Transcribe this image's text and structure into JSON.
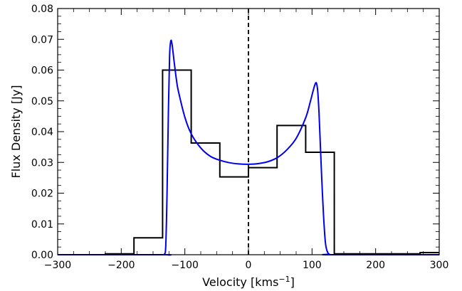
{
  "chart_data": {
    "type": "line",
    "xlabel": "Velocity [kms",
    "xlabel_sup": "−1",
    "xlabel_end": "]",
    "ylabel": "Flux Density [Jy]",
    "xlim": [
      -300,
      300
    ],
    "ylim": [
      0,
      0.08
    ],
    "x_ticks": [
      -300,
      -200,
      -100,
      0,
      100,
      200,
      300
    ],
    "x_tick_labels": [
      "−300",
      "−200",
      "−100",
      "0",
      "100",
      "200",
      "300"
    ],
    "y_ticks": [
      0,
      0.01,
      0.02,
      0.03,
      0.04,
      0.05,
      0.06,
      0.07,
      0.08
    ],
    "y_tick_labels": [
      "0.00",
      "0.01",
      "0.02",
      "0.03",
      "0.04",
      "0.05",
      "0.06",
      "0.07",
      "0.08"
    ],
    "grid": false,
    "vline": {
      "x": 0,
      "style": "dashed",
      "color": "#000000"
    },
    "series": [
      {
        "style": "steps",
        "color": "#000000",
        "edges": [
          -300,
          -225,
          -180,
          -135,
          -90,
          -45,
          0,
          45,
          90,
          135,
          180,
          225,
          270,
          300
        ],
        "values": [
          0.0,
          0.0003,
          0.0055,
          0.06,
          0.0363,
          0.0253,
          0.0283,
          0.042,
          0.0333,
          0.0003,
          0.0003,
          0.0003,
          0.0007
        ]
      },
      {
        "style": "smooth",
        "color": "#0000ee",
        "x": [
          -300,
          -135,
          -132,
          -130,
          -128,
          -126,
          -124,
          -122,
          -120,
          -117,
          -113,
          -110,
          -100,
          -90,
          -75,
          -60,
          -45,
          -30,
          -15,
          0,
          15,
          30,
          45,
          60,
          75,
          90,
          97,
          102,
          105,
          107,
          109,
          111,
          113,
          115,
          118,
          121,
          124,
          127,
          130,
          300
        ],
        "y": [
          0.0,
          0.0,
          0.0002,
          0.003,
          0.02,
          0.045,
          0.0645,
          0.0695,
          0.0682,
          0.063,
          0.0565,
          0.053,
          0.0447,
          0.0393,
          0.0347,
          0.032,
          0.0307,
          0.0299,
          0.0295,
          0.0294,
          0.0296,
          0.0302,
          0.0315,
          0.034,
          0.0378,
          0.0445,
          0.0495,
          0.0535,
          0.0555,
          0.0557,
          0.053,
          0.046,
          0.036,
          0.026,
          0.013,
          0.004,
          0.001,
          0.0002,
          0.0,
          0.0
        ]
      }
    ]
  }
}
